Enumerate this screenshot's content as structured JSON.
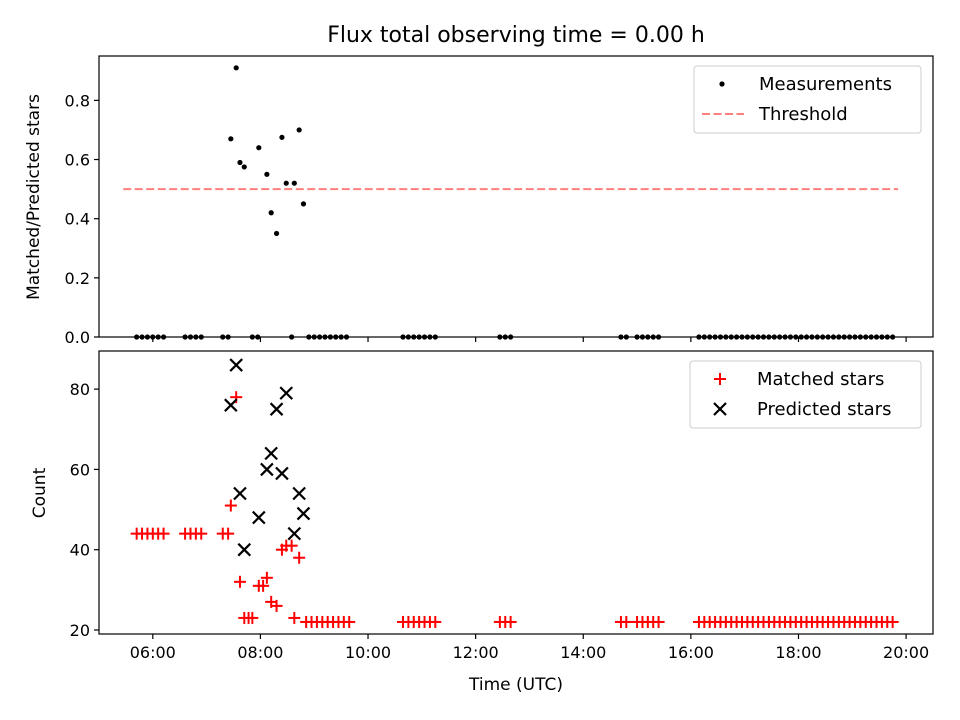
{
  "figure": {
    "title": "Flux total observing time = 0.00 h",
    "xlabel": "Time (UTC)"
  },
  "chart_data": [
    {
      "type": "scatter",
      "panel": "top",
      "xlabel": "",
      "ylabel": "Matched/Predicted stars",
      "x_unit": "hours UTC",
      "xlim": [
        5.0,
        20.5
      ],
      "ylim": [
        0,
        0.95
      ],
      "yticks": [
        0.0,
        0.2,
        0.4,
        0.6,
        0.8
      ],
      "ytick_labels": [
        "0.0",
        "0.2",
        "0.4",
        "0.6",
        "0.8"
      ],
      "xticks": [
        6,
        8,
        10,
        12,
        14,
        16,
        18,
        20
      ],
      "grid": false,
      "legend_position": "top-right",
      "series": [
        {
          "name": "Measurements",
          "kind": "scatter",
          "color": "#000000",
          "marker": "dot",
          "points": [
            [
              5.7,
              0
            ],
            [
              5.8,
              0
            ],
            [
              5.9,
              0
            ],
            [
              6.0,
              0
            ],
            [
              6.1,
              0
            ],
            [
              6.2,
              0
            ],
            [
              6.6,
              0
            ],
            [
              6.7,
              0
            ],
            [
              6.8,
              0
            ],
            [
              6.9,
              0
            ],
            [
              7.3,
              0
            ],
            [
              7.4,
              0
            ],
            [
              7.45,
              0.67
            ],
            [
              7.55,
              0.91
            ],
            [
              7.62,
              0.59
            ],
            [
              7.7,
              0.575
            ],
            [
              7.85,
              0
            ],
            [
              7.95,
              0
            ],
            [
              7.97,
              0.64
            ],
            [
              8.12,
              0.55
            ],
            [
              8.2,
              0.42
            ],
            [
              8.3,
              0.35
            ],
            [
              8.4,
              0.675
            ],
            [
              8.48,
              0.52
            ],
            [
              8.58,
              0
            ],
            [
              8.63,
              0.52
            ],
            [
              8.72,
              0.7
            ],
            [
              8.8,
              0.45
            ],
            [
              8.9,
              0
            ],
            [
              9.0,
              0
            ],
            [
              9.1,
              0
            ],
            [
              9.2,
              0
            ],
            [
              9.3,
              0
            ],
            [
              9.4,
              0
            ],
            [
              9.5,
              0
            ],
            [
              9.6,
              0
            ],
            [
              10.65,
              0
            ],
            [
              10.75,
              0
            ],
            [
              10.85,
              0
            ],
            [
              10.95,
              0
            ],
            [
              11.05,
              0
            ],
            [
              11.15,
              0
            ],
            [
              11.25,
              0
            ],
            [
              12.45,
              0
            ],
            [
              12.55,
              0
            ],
            [
              12.65,
              0
            ],
            [
              14.7,
              0
            ],
            [
              14.8,
              0
            ],
            [
              15.0,
              0
            ],
            [
              15.1,
              0
            ],
            [
              15.2,
              0
            ],
            [
              15.3,
              0
            ],
            [
              15.4,
              0
            ],
            [
              16.15,
              0
            ],
            [
              16.25,
              0
            ],
            [
              16.35,
              0
            ],
            [
              16.45,
              0
            ],
            [
              16.55,
              0
            ],
            [
              16.65,
              0
            ],
            [
              16.75,
              0
            ],
            [
              16.85,
              0
            ],
            [
              16.95,
              0
            ],
            [
              17.05,
              0
            ],
            [
              17.15,
              0
            ],
            [
              17.25,
              0
            ],
            [
              17.35,
              0
            ],
            [
              17.45,
              0
            ],
            [
              17.55,
              0
            ],
            [
              17.65,
              0
            ],
            [
              17.75,
              0
            ],
            [
              17.85,
              0
            ],
            [
              17.95,
              0
            ],
            [
              18.05,
              0
            ],
            [
              18.15,
              0
            ],
            [
              18.25,
              0
            ],
            [
              18.35,
              0
            ],
            [
              18.45,
              0
            ],
            [
              18.55,
              0
            ],
            [
              18.65,
              0
            ],
            [
              18.75,
              0
            ],
            [
              18.85,
              0
            ],
            [
              18.95,
              0
            ],
            [
              19.05,
              0
            ],
            [
              19.15,
              0
            ],
            [
              19.25,
              0
            ],
            [
              19.35,
              0
            ],
            [
              19.45,
              0
            ],
            [
              19.55,
              0
            ],
            [
              19.65,
              0
            ],
            [
              19.75,
              0
            ]
          ]
        },
        {
          "name": "Threshold",
          "kind": "line",
          "color": "#ff7f7f",
          "linestyle": "dashed",
          "points": [
            [
              5.45,
              0.5
            ],
            [
              19.85,
              0.5
            ]
          ]
        }
      ]
    },
    {
      "type": "scatter",
      "panel": "bottom",
      "xlabel": "Time (UTC)",
      "ylabel": "Count",
      "x_unit": "hours UTC",
      "xlim": [
        5.0,
        20.5
      ],
      "ylim": [
        19.0,
        89.5
      ],
      "yticks": [
        20,
        40,
        60,
        80
      ],
      "ytick_labels": [
        "20",
        "40",
        "60",
        "80"
      ],
      "xticks": [
        6,
        8,
        10,
        12,
        14,
        16,
        18,
        20
      ],
      "xtick_labels": [
        "06:00",
        "08:00",
        "10:00",
        "12:00",
        "14:00",
        "16:00",
        "18:00",
        "20:00"
      ],
      "grid": false,
      "legend_position": "top-right",
      "series": [
        {
          "name": "Matched stars",
          "kind": "scatter",
          "color": "#ff0000",
          "marker": "plus",
          "points": [
            [
              5.7,
              44
            ],
            [
              5.8,
              44
            ],
            [
              5.9,
              44
            ],
            [
              6.0,
              44
            ],
            [
              6.1,
              44
            ],
            [
              6.2,
              44
            ],
            [
              6.6,
              44
            ],
            [
              6.7,
              44
            ],
            [
              6.8,
              44
            ],
            [
              6.9,
              44
            ],
            [
              7.3,
              44
            ],
            [
              7.4,
              44
            ],
            [
              7.45,
              51
            ],
            [
              7.55,
              78
            ],
            [
              7.62,
              32
            ],
            [
              7.7,
              23
            ],
            [
              7.78,
              23
            ],
            [
              7.85,
              23
            ],
            [
              7.97,
              31
            ],
            [
              8.05,
              31
            ],
            [
              8.12,
              33
            ],
            [
              8.2,
              27
            ],
            [
              8.3,
              26
            ],
            [
              8.4,
              40
            ],
            [
              8.48,
              41
            ],
            [
              8.58,
              41
            ],
            [
              8.63,
              23
            ],
            [
              8.72,
              38
            ],
            [
              8.85,
              22
            ],
            [
              8.95,
              22
            ],
            [
              9.05,
              22
            ],
            [
              9.15,
              22
            ],
            [
              9.25,
              22
            ],
            [
              9.35,
              22
            ],
            [
              9.45,
              22
            ],
            [
              9.55,
              22
            ],
            [
              9.65,
              22
            ],
            [
              10.65,
              22
            ],
            [
              10.75,
              22
            ],
            [
              10.85,
              22
            ],
            [
              10.95,
              22
            ],
            [
              11.05,
              22
            ],
            [
              11.15,
              22
            ],
            [
              11.25,
              22
            ],
            [
              12.45,
              22
            ],
            [
              12.55,
              22
            ],
            [
              12.65,
              22
            ],
            [
              14.7,
              22
            ],
            [
              14.8,
              22
            ],
            [
              15.0,
              22
            ],
            [
              15.1,
              22
            ],
            [
              15.2,
              22
            ],
            [
              15.3,
              22
            ],
            [
              15.4,
              22
            ],
            [
              16.15,
              22
            ],
            [
              16.25,
              22
            ],
            [
              16.35,
              22
            ],
            [
              16.45,
              22
            ],
            [
              16.55,
              22
            ],
            [
              16.65,
              22
            ],
            [
              16.75,
              22
            ],
            [
              16.85,
              22
            ],
            [
              16.95,
              22
            ],
            [
              17.05,
              22
            ],
            [
              17.15,
              22
            ],
            [
              17.25,
              22
            ],
            [
              17.35,
              22
            ],
            [
              17.45,
              22
            ],
            [
              17.55,
              22
            ],
            [
              17.65,
              22
            ],
            [
              17.75,
              22
            ],
            [
              17.85,
              22
            ],
            [
              17.95,
              22
            ],
            [
              18.05,
              22
            ],
            [
              18.15,
              22
            ],
            [
              18.25,
              22
            ],
            [
              18.35,
              22
            ],
            [
              18.45,
              22
            ],
            [
              18.55,
              22
            ],
            [
              18.65,
              22
            ],
            [
              18.75,
              22
            ],
            [
              18.85,
              22
            ],
            [
              18.95,
              22
            ],
            [
              19.05,
              22
            ],
            [
              19.15,
              22
            ],
            [
              19.25,
              22
            ],
            [
              19.35,
              22
            ],
            [
              19.45,
              22
            ],
            [
              19.55,
              22
            ],
            [
              19.65,
              22
            ],
            [
              19.75,
              22
            ]
          ]
        },
        {
          "name": "Predicted stars",
          "kind": "scatter",
          "color": "#000000",
          "marker": "x",
          "points": [
            [
              7.45,
              76
            ],
            [
              7.55,
              86
            ],
            [
              7.62,
              54
            ],
            [
              7.7,
              40
            ],
            [
              7.97,
              48
            ],
            [
              8.12,
              60
            ],
            [
              8.2,
              64
            ],
            [
              8.3,
              75
            ],
            [
              8.4,
              59
            ],
            [
              8.48,
              79
            ],
            [
              8.63,
              44
            ],
            [
              8.72,
              54
            ],
            [
              8.8,
              49
            ]
          ]
        }
      ]
    }
  ]
}
